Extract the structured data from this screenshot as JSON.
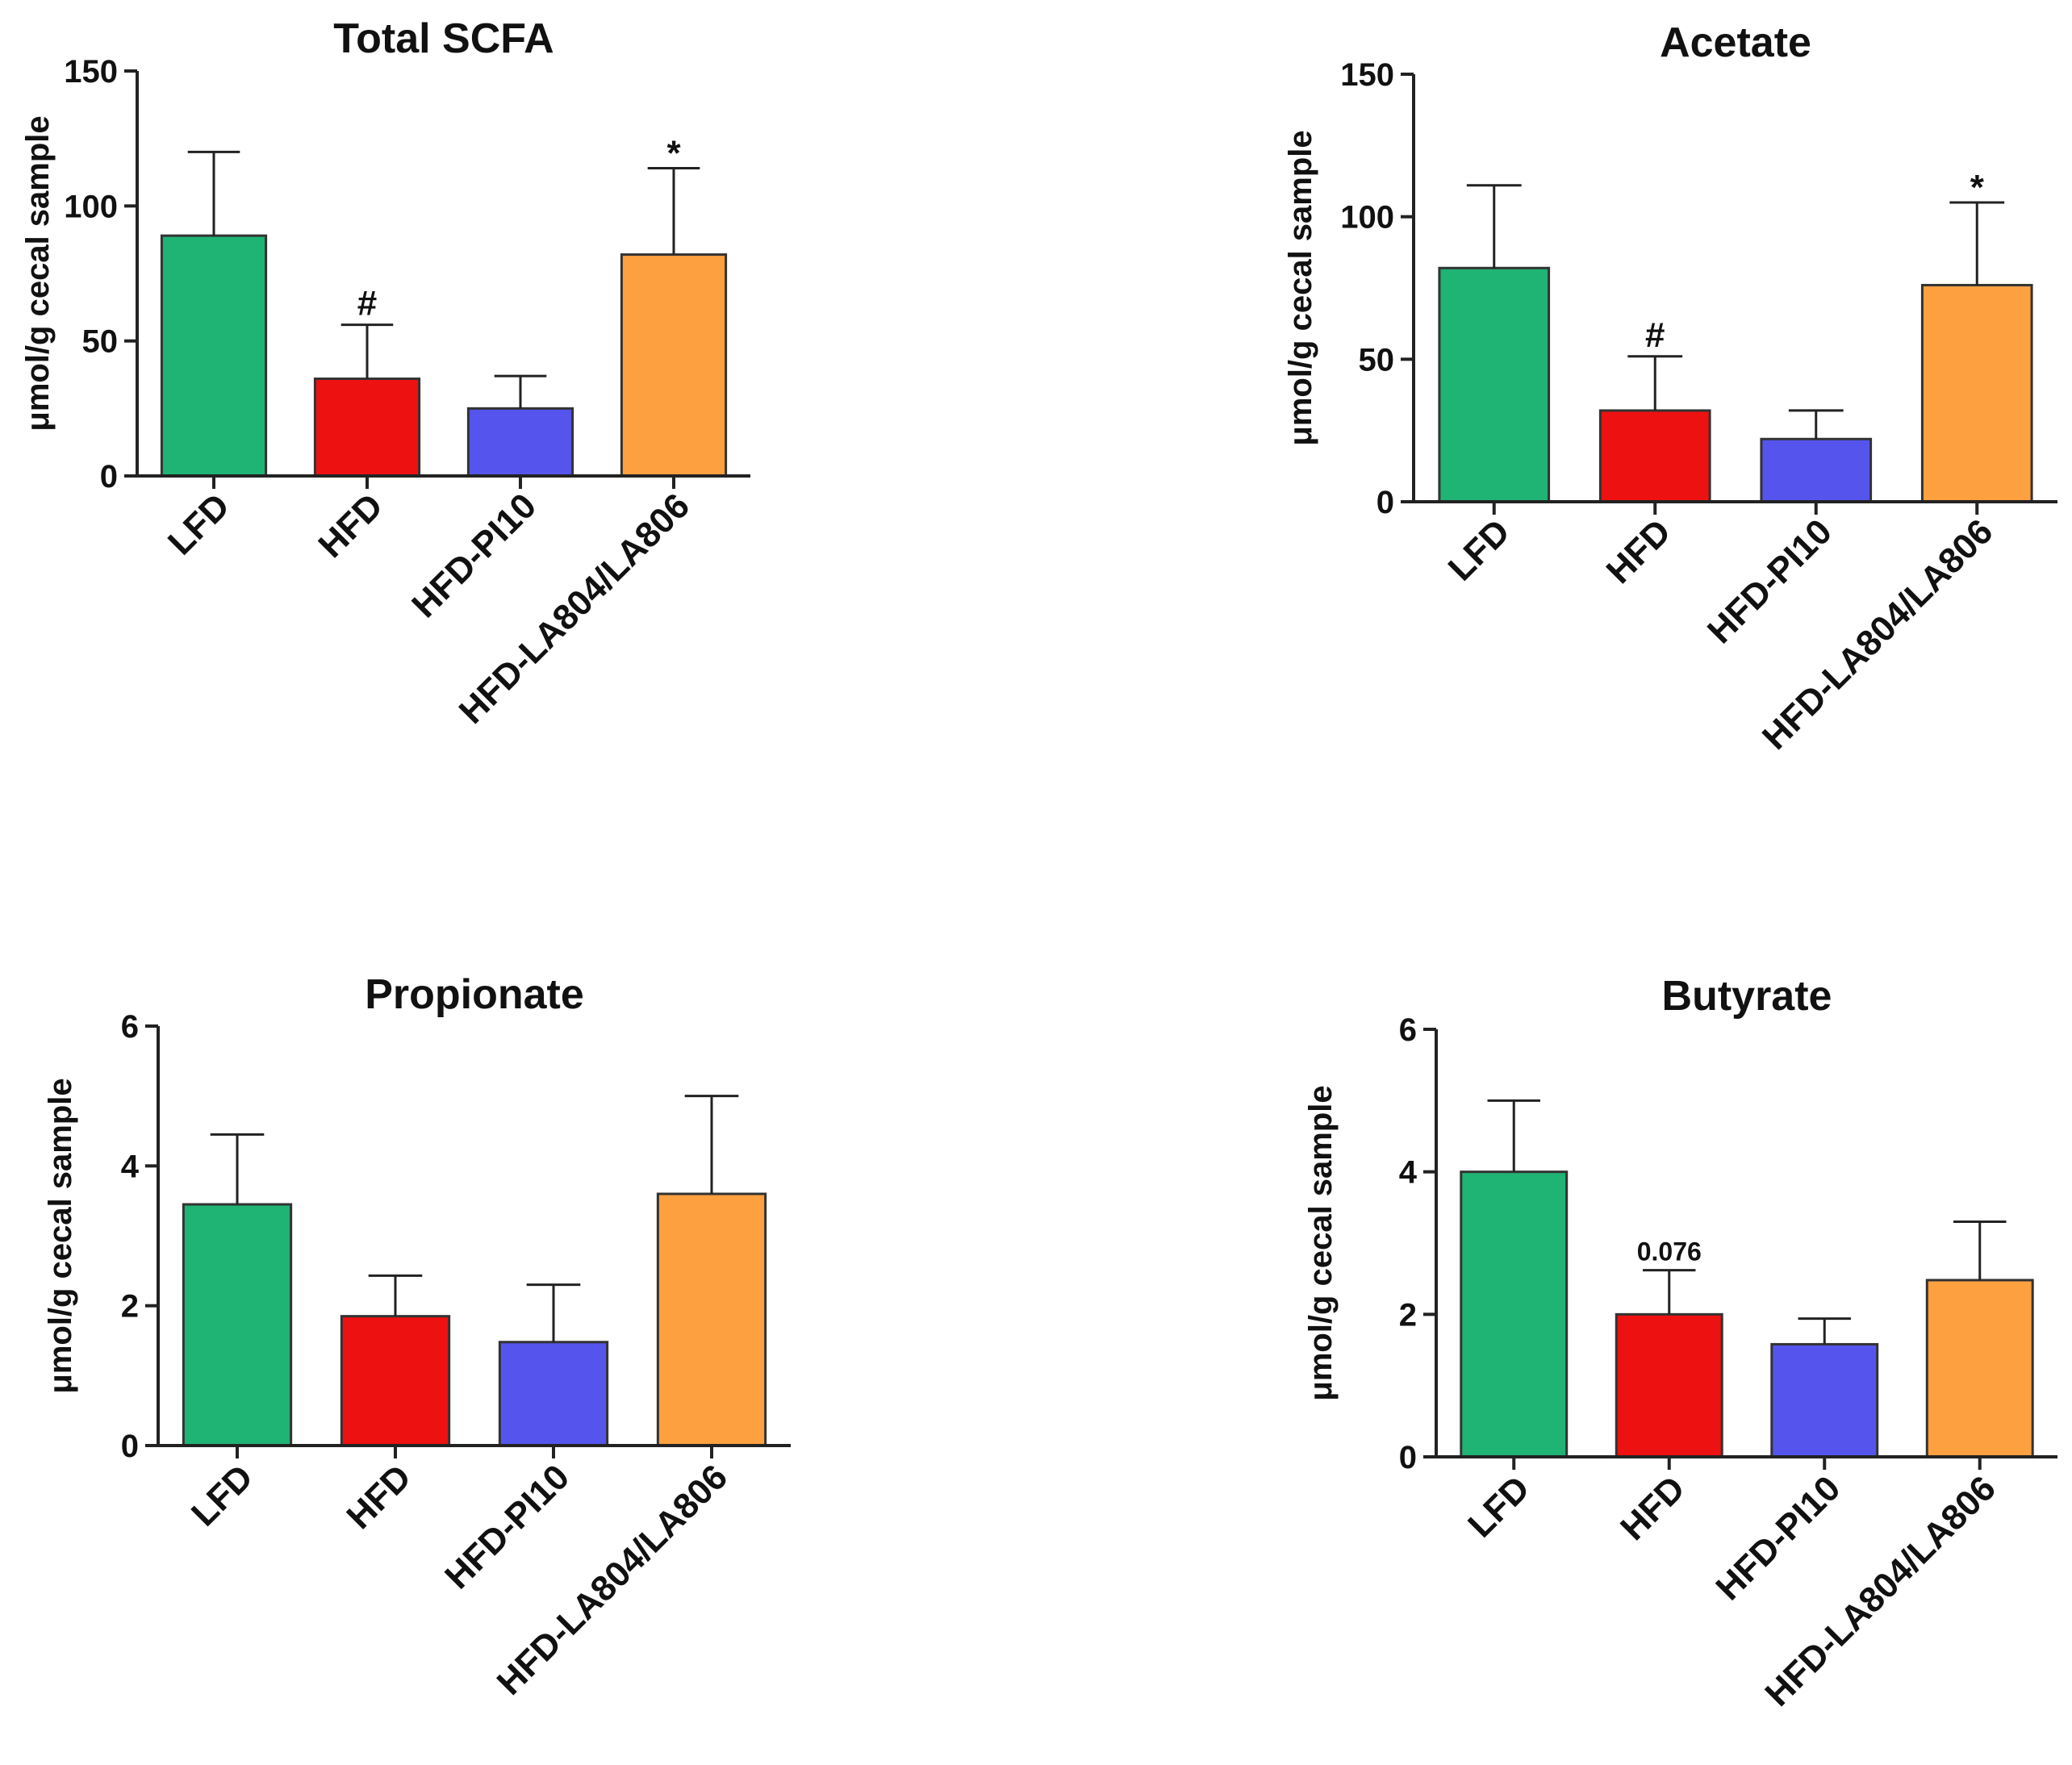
{
  "chart_data": [
    {
      "type": "bar",
      "title": "Total SCFA",
      "ylabel": "μmol/g cecal sample",
      "xlabel": "",
      "ylim": [
        0,
        150
      ],
      "yticks": [
        0,
        50,
        100,
        150
      ],
      "categories": [
        "LFD",
        "HFD",
        "HFD-PI10",
        "HFD-LA804/LA806"
      ],
      "values": [
        89,
        36,
        25,
        82
      ],
      "errors": [
        31,
        20,
        12,
        32
      ],
      "annotations": [
        "",
        "#",
        "",
        "*"
      ],
      "colors": [
        "#1fb374",
        "#ee1111",
        "#5555ee",
        "#fca040"
      ]
    },
    {
      "type": "bar",
      "title": "Acetate",
      "ylabel": "μmol/g cecal sample",
      "xlabel": "",
      "ylim": [
        0,
        150
      ],
      "yticks": [
        0,
        50,
        100,
        150
      ],
      "categories": [
        "LFD",
        "HFD",
        "HFD-PI10",
        "HFD-LA804/LA806"
      ],
      "values": [
        82,
        32,
        22,
        76
      ],
      "errors": [
        29,
        19,
        10,
        29
      ],
      "annotations": [
        "",
        "#",
        "",
        "*"
      ],
      "colors": [
        "#1fb374",
        "#ee1111",
        "#5555ee",
        "#fca040"
      ]
    },
    {
      "type": "bar",
      "title": "Propionate",
      "ylabel": "μmol/g cecal sample",
      "xlabel": "",
      "ylim": [
        0,
        6
      ],
      "yticks": [
        0,
        2,
        4,
        6
      ],
      "categories": [
        "LFD",
        "HFD",
        "HFD-PI10",
        "HFD-LA804/LA806"
      ],
      "values": [
        3.45,
        1.85,
        1.48,
        3.6
      ],
      "errors": [
        1.0,
        0.58,
        0.82,
        1.4
      ],
      "annotations": [
        "",
        "",
        "",
        ""
      ],
      "colors": [
        "#1fb374",
        "#ee1111",
        "#5555ee",
        "#fca040"
      ]
    },
    {
      "type": "bar",
      "title": "Butyrate",
      "ylabel": "μmol/g  cecal sample",
      "xlabel": "",
      "ylim": [
        0,
        6
      ],
      "yticks": [
        0,
        2,
        4,
        6
      ],
      "categories": [
        "LFD",
        "HFD",
        "HFD-PI10",
        "HFD-LA804/LA806"
      ],
      "values": [
        4.0,
        2.0,
        1.58,
        2.48
      ],
      "errors": [
        1.0,
        0.62,
        0.36,
        0.82
      ],
      "annotations": [
        "",
        "0.076",
        "",
        ""
      ],
      "colors": [
        "#1fb374",
        "#ee1111",
        "#5555ee",
        "#fca040"
      ]
    }
  ]
}
